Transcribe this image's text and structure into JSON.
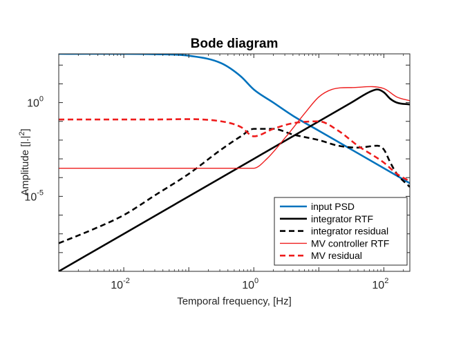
{
  "chart_data": {
    "type": "line",
    "title": "Bode diagram",
    "xlabel": "Temporal frequency, [Hz]",
    "ylabel_main": "Amplitude [|.|",
    "ylabel_sup": "2",
    "ylabel_end": "]",
    "xscale": "log",
    "yscale": "log",
    "xlim_log10": [
      -3,
      2.4
    ],
    "ylim_log10": [
      -9,
      2.6
    ],
    "xticks": [
      {
        "base": "10",
        "exp": "-2",
        "log": -2
      },
      {
        "base": "10",
        "exp": "0",
        "log": 0
      },
      {
        "base": "10",
        "exp": "2",
        "log": 2
      }
    ],
    "yticks": [
      {
        "base": "10",
        "exp": "0",
        "log": 0
      },
      {
        "base": "10",
        "exp": "-5",
        "log": -5
      }
    ],
    "grid": false,
    "legend_position": "bottom-right",
    "series": [
      {
        "name": "input PSD",
        "color": "#0072BD",
        "style": "solid",
        "width": 2.6,
        "log_x": [
          -3,
          -1.5,
          -1,
          -0.5,
          -0.2,
          0,
          0.3,
          0.6,
          1,
          1.5,
          2,
          2.4
        ],
        "log_y": [
          2.6,
          2.58,
          2.5,
          2.1,
          1.4,
          0.7,
          0,
          -0.7,
          -1.5,
          -2.5,
          -3.5,
          -4.3
        ]
      },
      {
        "name": "integrator RTF",
        "color": "#000000",
        "style": "solid",
        "width": 2.6,
        "log_x": [
          -3,
          -1,
          0,
          1,
          1.5,
          1.8,
          1.9,
          2.0,
          2.1,
          2.2,
          2.4
        ],
        "log_y": [
          -9,
          -5,
          -3,
          -1,
          0,
          0.6,
          0.7,
          0.55,
          0.2,
          0.0,
          -0.1
        ]
      },
      {
        "name": "integrator residual",
        "color": "#000000",
        "style": "dashed",
        "width": 2.6,
        "log_x": [
          -3,
          -2.5,
          -2,
          -1.5,
          -1,
          -0.5,
          -0.2,
          0,
          0.3,
          0.6,
          1,
          1.3,
          1.6,
          1.9,
          2.0,
          2.1,
          2.2,
          2.4
        ],
        "log_y": [
          -7.5,
          -6.8,
          -6,
          -4.9,
          -3.8,
          -2.5,
          -1.8,
          -1.4,
          -1.4,
          -1.7,
          -2.0,
          -2.3,
          -2.4,
          -2.3,
          -2.5,
          -3.2,
          -3.8,
          -4.5
        ]
      },
      {
        "name": "MV controller RTF",
        "color": "#EE1C1C",
        "style": "solid",
        "width": 1.4,
        "log_x": [
          -3,
          -1,
          0,
          0.2,
          0.5,
          0.8,
          1,
          1.2,
          1.5,
          2,
          2.2,
          2.4
        ],
        "log_y": [
          -3.5,
          -3.5,
          -3.5,
          -3.0,
          -1.8,
          -0.5,
          0.3,
          0.7,
          0.8,
          0.75,
          0.3,
          0.1
        ]
      },
      {
        "name": "MV residual",
        "color": "#EE1C1C",
        "style": "dashed",
        "width": 2.6,
        "log_x": [
          -3,
          -1.5,
          -0.5,
          -0.2,
          0,
          0.3,
          0.6,
          1,
          1.3,
          1.6,
          2.0,
          2.2,
          2.4
        ],
        "log_y": [
          -0.9,
          -0.9,
          -1.0,
          -1.3,
          -1.8,
          -1.4,
          -1.1,
          -1.0,
          -1.5,
          -2.3,
          -3.2,
          -3.8,
          -4.2
        ]
      }
    ]
  }
}
